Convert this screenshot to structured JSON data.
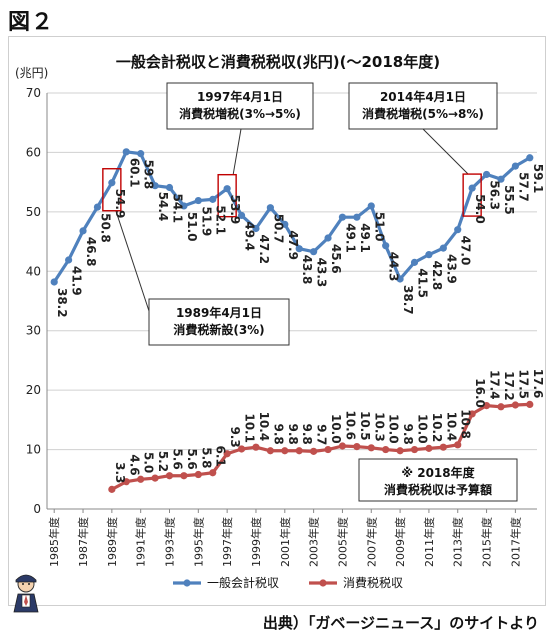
{
  "figure_label": "図２",
  "source_note": "出典）「ガベージニュース」のサイトより",
  "colors": {
    "general": "#4f81bd",
    "consumption": "#c0504d",
    "highlight": "#c00000"
  },
  "chart_data": {
    "type": "line",
    "title": "一般会計税収と消費税税収(兆円)(～2018年度)",
    "ylabel": "(兆円)",
    "xlabel": "",
    "ylim": [
      0,
      70
    ],
    "yticks": [
      0,
      10,
      20,
      30,
      40,
      50,
      60,
      70
    ],
    "grid": true,
    "legend_position": "bottom",
    "x": [
      1985,
      1986,
      1987,
      1988,
      1989,
      1990,
      1991,
      1992,
      1993,
      1994,
      1995,
      1996,
      1997,
      1998,
      1999,
      2000,
      2001,
      2002,
      2003,
      2004,
      2005,
      2006,
      2007,
      2008,
      2009,
      2010,
      2011,
      2012,
      2013,
      2014,
      2015,
      2016,
      2017,
      2018
    ],
    "x_tick_labels": [
      "1985年度",
      "1987年度",
      "1989年度",
      "1991年度",
      "1993年度",
      "1995年度",
      "1997年度",
      "1999年度",
      "2001年度",
      "2003年度",
      "2005年度",
      "2007年度",
      "2009年度",
      "2011年度",
      "2013年度",
      "2015年度",
      "2017年度"
    ],
    "series": [
      {
        "name": "一般会計税収",
        "values": [
          38.2,
          41.9,
          46.8,
          50.8,
          54.9,
          60.1,
          59.8,
          54.4,
          54.1,
          51.0,
          51.9,
          52.1,
          53.9,
          49.4,
          47.2,
          50.7,
          47.9,
          43.8,
          43.3,
          45.6,
          49.1,
          49.1,
          51.0,
          44.3,
          38.7,
          41.5,
          42.8,
          43.9,
          47.0,
          54.0,
          56.3,
          55.5,
          57.7,
          59.1
        ],
        "labels": [
          "38.2",
          "41.9",
          "46.8",
          "50.8",
          "54.9",
          "60.1",
          "59.8",
          "54.4",
          "54.1",
          "51.0",
          "51.9",
          "52.1",
          "53.9",
          "49.4",
          "47.2",
          "50.7",
          "47.9",
          "43.8",
          "43.3",
          "45.6",
          "49.1",
          "49.1",
          "51.0",
          "44.3",
          "38.7",
          "41.5",
          "42.8",
          "43.9",
          "47.0",
          "54.0",
          "56.3",
          "55.5",
          "57.7",
          "59.1"
        ]
      },
      {
        "name": "消費税税収",
        "x": [
          1989,
          1990,
          1991,
          1992,
          1993,
          1994,
          1995,
          1996,
          1997,
          1998,
          1999,
          2000,
          2001,
          2002,
          2003,
          2004,
          2005,
          2006,
          2007,
          2008,
          2009,
          2010,
          2011,
          2012,
          2013,
          2014,
          2015,
          2016,
          2017,
          2018
        ],
        "values": [
          3.3,
          4.6,
          5.0,
          5.2,
          5.6,
          5.6,
          5.8,
          6.1,
          9.3,
          10.1,
          10.4,
          9.8,
          9.8,
          9.8,
          9.7,
          10.0,
          10.6,
          10.5,
          10.3,
          10.0,
          9.8,
          10.0,
          10.2,
          10.4,
          10.8,
          16.0,
          17.4,
          17.2,
          17.5,
          17.6
        ],
        "labels": [
          "3.3",
          "4.6",
          "5.0",
          "5.2",
          "5.6",
          "5.6",
          "5.8",
          "6.1",
          "9.3",
          "10.1",
          "10.4",
          "9.8",
          "9.8",
          "9.8",
          "9.7",
          "10.0",
          "10.6",
          "10.5",
          "10.3",
          "10.0",
          "9.8",
          "10.0",
          "10.2",
          "10.4",
          "10.8",
          "16.0",
          "17.4",
          "17.2",
          "17.5",
          "17.6"
        ]
      }
    ],
    "highlights": [
      1989,
      1997,
      2014
    ],
    "annotations": [
      {
        "id": "1997",
        "lines": [
          "1997年4月1日",
          "消費税増税(3%→5%)"
        ]
      },
      {
        "id": "2014",
        "lines": [
          "2014年4月1日",
          "消費税増税(5%→8%)"
        ]
      },
      {
        "id": "1989",
        "lines": [
          "1989年4月1日",
          "消費税新設(3%)"
        ]
      },
      {
        "id": "note",
        "lines": [
          "※ 2018年度",
          "消費税税収は予算額"
        ]
      }
    ]
  }
}
